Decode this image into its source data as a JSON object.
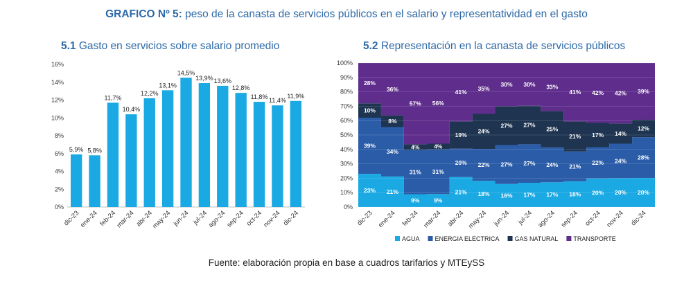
{
  "header": {
    "title_bold": "GRAFICO Nº 5:",
    "title_rest": " peso de la canasta de servicios públicos en el salario y representatividad en el gasto"
  },
  "source": "Fuente: elaboración propia en base a cuadros tarifarios y MTEySS",
  "chart_data": [
    {
      "type": "bar",
      "title_num": "5.1",
      "title": " Gasto en servicios sobre salario promedio",
      "categories": [
        "dic-23",
        "ene-24",
        "feb-24",
        "mar-24",
        "abr-24",
        "may-24",
        "jun-24",
        "jul-24",
        "ago-24",
        "sep-24",
        "oct-24",
        "nov-24",
        "dic-24"
      ],
      "values": [
        5.9,
        5.8,
        11.7,
        10.4,
        12.2,
        13.1,
        14.5,
        13.9,
        13.6,
        12.8,
        11.8,
        11.4,
        11.9
      ],
      "data_labels": [
        "5,9%",
        "5,8%",
        "11,7%",
        "10,4%",
        "12,2%",
        "13,1%",
        "14,5%",
        "13,9%",
        "13,6%",
        "12,8%",
        "11,8%",
        "11,4%",
        "11,9%"
      ],
      "y_ticks": [
        0,
        2,
        4,
        6,
        8,
        10,
        12,
        14,
        16
      ],
      "y_tick_labels": [
        "0%",
        "2%",
        "4%",
        "6%",
        "8%",
        "10%",
        "12%",
        "14%",
        "16%"
      ],
      "ylim": [
        0,
        16
      ],
      "color": "#1aa9e3",
      "grid": false
    },
    {
      "type": "area",
      "stacked": true,
      "title_num": "5.2",
      "title": " Representación en la canasta de servicios públicos",
      "categories": [
        "dic-23",
        "ene-24",
        "feb-24",
        "mar-24",
        "abr-24",
        "may-24",
        "jun-24",
        "jul-24",
        "ago-24",
        "sep-24",
        "oct-24",
        "nov-24",
        "dic-24"
      ],
      "series": [
        {
          "name": "AGUA",
          "color": "#1aa9e3",
          "values": [
            23,
            21,
            9,
            9,
            21,
            18,
            16,
            17,
            17,
            18,
            20,
            20,
            20
          ],
          "labels": [
            "23%",
            "21%",
            "9%",
            "9%",
            "21%",
            "18%",
            "16%",
            "17%",
            "17%",
            "18%",
            "20%",
            "20%",
            "20%"
          ]
        },
        {
          "name": "ENERGIA ELECTRICA",
          "color": "#2b5ca8",
          "values": [
            39,
            34,
            31,
            31,
            20,
            22,
            27,
            27,
            24,
            21,
            22,
            24,
            28
          ],
          "labels": [
            "39%",
            "34%",
            "31%",
            "31%",
            "20%",
            "22%",
            "27%",
            "27%",
            "24%",
            "21%",
            "22%",
            "24%",
            "28%"
          ]
        },
        {
          "name": "GAS NATURAL",
          "color": "#1e3450",
          "values": [
            10,
            8,
            4,
            4,
            19,
            24,
            27,
            27,
            25,
            21,
            17,
            14,
            12
          ],
          "labels": [
            "10%",
            "8%",
            "4%",
            "4%",
            "19%",
            "24%",
            "27%",
            "27%",
            "25%",
            "21%",
            "17%",
            "14%",
            "12%"
          ]
        },
        {
          "name": "TRANSPORTE",
          "color": "#5f2d8c",
          "values": [
            28,
            36,
            57,
            56,
            41,
            35,
            30,
            30,
            33,
            41,
            42,
            42,
            39
          ],
          "labels": [
            "28%",
            "36%",
            "57%",
            "56%",
            "41%",
            "35%",
            "30%",
            "30%",
            "33%",
            "41%",
            "42%",
            "42%",
            "39%"
          ]
        }
      ],
      "y_ticks": [
        0,
        10,
        20,
        30,
        40,
        50,
        60,
        70,
        80,
        90,
        100
      ],
      "y_tick_labels": [
        "0%",
        "10%",
        "20%",
        "30%",
        "40%",
        "50%",
        "60%",
        "70%",
        "80%",
        "90%",
        "100%"
      ],
      "ylim": [
        0,
        100
      ],
      "legend_position": "bottom",
      "grid": true
    }
  ]
}
